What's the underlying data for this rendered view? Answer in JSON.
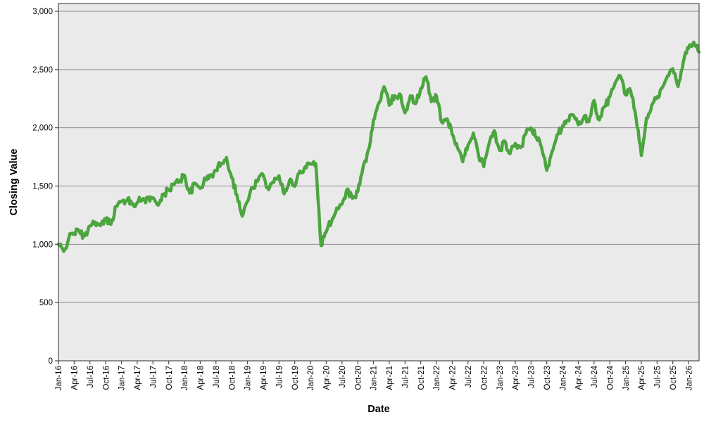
{
  "chart_data": {
    "type": "line",
    "title": "",
    "xlabel": "Date",
    "ylabel": "Closing Value",
    "grid": "horizontal",
    "legend": "none",
    "plot_bg_color": "#EAEAEA",
    "grid_color": "#8C8C8C",
    "border_color": "#4D4D4D",
    "ylim": [
      0,
      3000
    ],
    "y_ticks": [
      0,
      500,
      1000,
      1500,
      2000,
      2500,
      3000
    ],
    "y_tick_labels": [
      "0",
      "500",
      "1,000",
      "1,500",
      "2,000",
      "2,500",
      "3,000"
    ],
    "x_tick_labels": [
      "Jan-16",
      "Apr-16",
      "Jul-16",
      "Oct-16",
      "Jan-17",
      "Apr-17",
      "Jul-17",
      "Oct-17",
      "Jan-18",
      "Apr-18",
      "Jul-18",
      "Oct-18",
      "Jan-19",
      "Apr-19",
      "Jul-19",
      "Oct-19",
      "Jan-20",
      "Apr-20",
      "Jul-20",
      "Oct-20",
      "Jan-21",
      "Apr-21",
      "Jul-21",
      "Oct-21",
      "Jan-22",
      "Apr-22",
      "Jul-22",
      "Oct-22",
      "Jan-23",
      "Apr-23",
      "Jul-23",
      "Oct-23",
      "Jan-24",
      "Apr-24",
      "Jul-24",
      "Oct-24",
      "Jan-25",
      "Apr-25",
      "Jul-25",
      "Oct-25",
      "Jan-26"
    ],
    "x_tick_interval_months": 3,
    "series": [
      {
        "name": "Closing Value",
        "color": "#4CA53F",
        "stroke_width": 4.5,
        "start_month": "2016-01",
        "end_month": "2026-03",
        "sampling": "monthly estimates read from daily trace",
        "daily_noise_amplitude": 26,
        "monthly_values": [
          1000,
          935,
          1060,
          1100,
          1110,
          1065,
          1165,
          1190,
          1155,
          1215,
          1180,
          1330,
          1365,
          1380,
          1350,
          1360,
          1385,
          1390,
          1395,
          1345,
          1420,
          1470,
          1510,
          1545,
          1590,
          1440,
          1520,
          1485,
          1560,
          1590,
          1630,
          1700,
          1740,
          1580,
          1420,
          1240,
          1370,
          1490,
          1545,
          1600,
          1465,
          1540,
          1595,
          1440,
          1555,
          1495,
          1630,
          1665,
          1700,
          1690,
          985,
          1110,
          1200,
          1310,
          1350,
          1470,
          1390,
          1450,
          1650,
          1800,
          2060,
          2210,
          2350,
          2200,
          2270,
          2290,
          2130,
          2270,
          2210,
          2330,
          2440,
          2230,
          2280,
          2040,
          2080,
          1950,
          1830,
          1700,
          1860,
          1950,
          1760,
          1670,
          1870,
          1970,
          1800,
          1880,
          1770,
          1870,
          1820,
          1950,
          2000,
          1920,
          1830,
          1640,
          1800,
          1950,
          2010,
          2060,
          2110,
          2020,
          2090,
          2060,
          2230,
          2060,
          2180,
          2260,
          2380,
          2440,
          2280,
          2320,
          2090,
          1760,
          2080,
          2190,
          2260,
          2340,
          2440,
          2510,
          2360,
          2570,
          2690,
          2730,
          2650
        ]
      }
    ]
  }
}
